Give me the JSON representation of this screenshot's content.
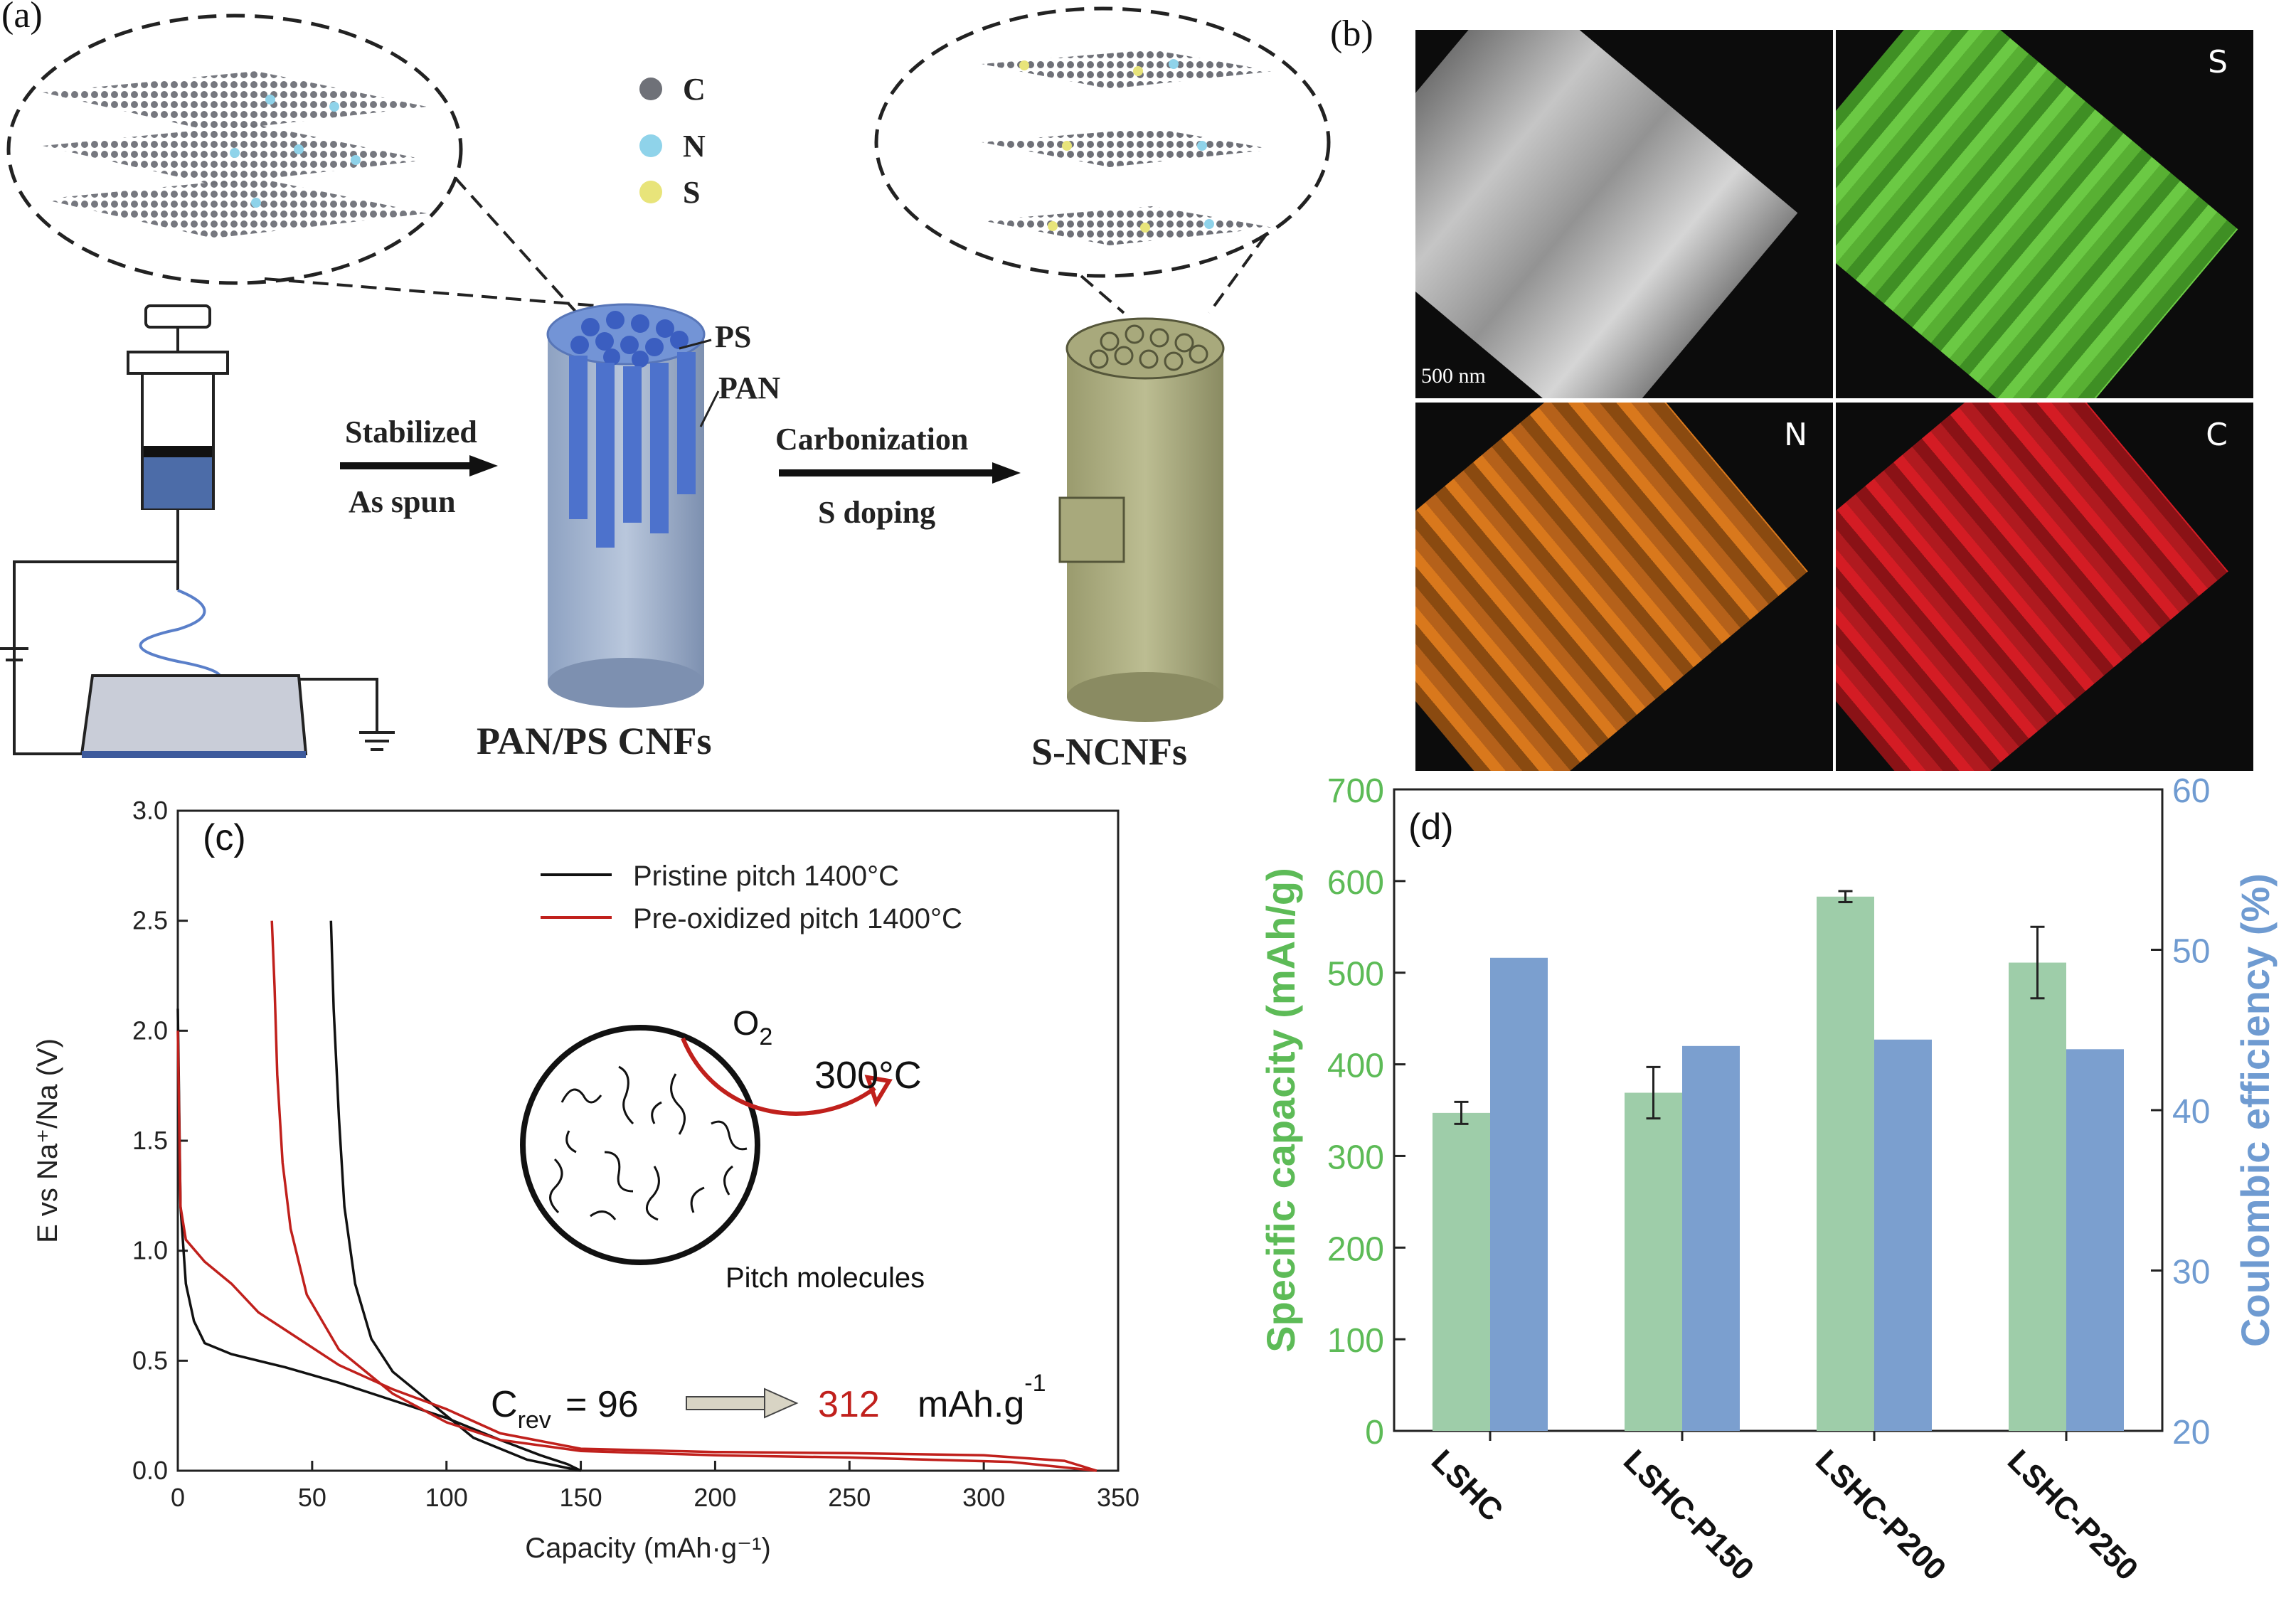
{
  "panel_a": {
    "label": "(a)",
    "legend": [
      {
        "symbol": "C",
        "color": "#6f7178"
      },
      {
        "symbol": "N",
        "color": "#8fd3ea"
      },
      {
        "symbol": "S",
        "color": "#e8e47a"
      }
    ],
    "fiber_layers": [
      "PS",
      "PAN"
    ],
    "step1_top": "Stabilized",
    "step1_bottom": "As spun",
    "step2_top": "Carbonization",
    "step2_bottom": "S doping",
    "product1": "PAN/PS CNFs",
    "product2": "S-NCNFs"
  },
  "panel_b": {
    "label": "(b)",
    "scale_bar": "500 nm",
    "maps": [
      {
        "label": "",
        "color": "#d8d8d8"
      },
      {
        "label": "S",
        "color": "#5fbf3a"
      },
      {
        "label": "N",
        "color": "#d9781c"
      },
      {
        "label": "C",
        "color": "#d41c24"
      }
    ]
  },
  "chart_data": [
    {
      "type": "line",
      "panel_label": "(c)",
      "xlabel": "Capacity (mAh·g⁻¹)",
      "ylabel": "E vs Na⁺/Na (V)",
      "xlim": [
        0,
        350
      ],
      "ylim": [
        0,
        3.0
      ],
      "x_ticks": [
        "0",
        "50",
        "100",
        "150",
        "200",
        "250",
        "300",
        "350"
      ],
      "y_ticks": [
        "0.0",
        "0.5",
        "1.0",
        "1.5",
        "2.0",
        "2.5",
        "3.0"
      ],
      "series": [
        {
          "name": "Pristine pitch 1400°C",
          "color": "#111111",
          "discharge": [
            [
              0,
              2.1
            ],
            [
              1,
              1.2
            ],
            [
              3,
              0.85
            ],
            [
              6,
              0.68
            ],
            [
              10,
              0.58
            ],
            [
              20,
              0.53
            ],
            [
              40,
              0.47
            ],
            [
              60,
              0.4
            ],
            [
              80,
              0.32
            ],
            [
              100,
              0.24
            ],
            [
              120,
              0.14
            ],
            [
              135,
              0.07
            ],
            [
              145,
              0.03
            ],
            [
              150,
              0.0
            ]
          ],
          "charge": [
            [
              150,
              0.0
            ],
            [
              130,
              0.05
            ],
            [
              110,
              0.15
            ],
            [
              95,
              0.3
            ],
            [
              80,
              0.45
            ],
            [
              72,
              0.6
            ],
            [
              66,
              0.85
            ],
            [
              62,
              1.2
            ],
            [
              60,
              1.6
            ],
            [
              58,
              2.1
            ],
            [
              57,
              2.5
            ]
          ]
        },
        {
          "name": "Pre-oxidized pitch 1400°C",
          "color": "#c0201c",
          "discharge": [
            [
              0,
              2.0
            ],
            [
              1,
              1.2
            ],
            [
              3,
              1.05
            ],
            [
              10,
              0.95
            ],
            [
              20,
              0.85
            ],
            [
              30,
              0.72
            ],
            [
              45,
              0.6
            ],
            [
              60,
              0.48
            ],
            [
              80,
              0.37
            ],
            [
              100,
              0.28
            ],
            [
              120,
              0.17
            ],
            [
              150,
              0.1
            ],
            [
              200,
              0.085
            ],
            [
              250,
              0.08
            ],
            [
              300,
              0.07
            ],
            [
              330,
              0.045
            ],
            [
              342,
              0.0
            ]
          ],
          "charge": [
            [
              342,
              0.0
            ],
            [
              310,
              0.04
            ],
            [
              250,
              0.06
            ],
            [
              200,
              0.07
            ],
            [
              150,
              0.09
            ],
            [
              120,
              0.14
            ],
            [
              100,
              0.22
            ],
            [
              80,
              0.35
            ],
            [
              60,
              0.55
            ],
            [
              48,
              0.8
            ],
            [
              42,
              1.1
            ],
            [
              39,
              1.4
            ],
            [
              37,
              1.8
            ],
            [
              36,
              2.2
            ],
            [
              35,
              2.5
            ]
          ]
        }
      ],
      "annotations": {
        "gas": "O",
        "gas_subscript": "2",
        "temperature": "300°C",
        "circle_label": "Pitch molecules",
        "crev_symbol": "C",
        "crev_subscript": "rev",
        "crev_before": "= 96",
        "crev_after": "312",
        "crev_unit": "mAh.g",
        "crev_unit_sup": "-1"
      }
    },
    {
      "type": "bar",
      "panel_label": "(d)",
      "categories": [
        "LSHC",
        "LSHC-P150",
        "LSHC-P200",
        "LSHC-P250"
      ],
      "y1_label": "Specific capacity (mAh/g)",
      "y2_label": "Coulombic efficiency (%)",
      "y1_lim": [
        0,
        700
      ],
      "y2_lim": [
        20,
        60
      ],
      "y1_ticks": [
        "0",
        "100",
        "200",
        "300",
        "400",
        "500",
        "600",
        "700"
      ],
      "y2_ticks": [
        "20",
        "30",
        "40",
        "50",
        "60"
      ],
      "series": [
        {
          "name": "Specific capacity",
          "axis": "left",
          "color": "#9ecda9",
          "values": [
            347,
            369,
            583,
            511
          ],
          "errors": [
            12,
            28,
            6,
            39
          ]
        },
        {
          "name": "Coulombic efficiency",
          "axis": "right",
          "color": "#7b9fcf",
          "values": [
            49.5,
            44.0,
            44.4,
            43.8
          ]
        }
      ]
    }
  ]
}
